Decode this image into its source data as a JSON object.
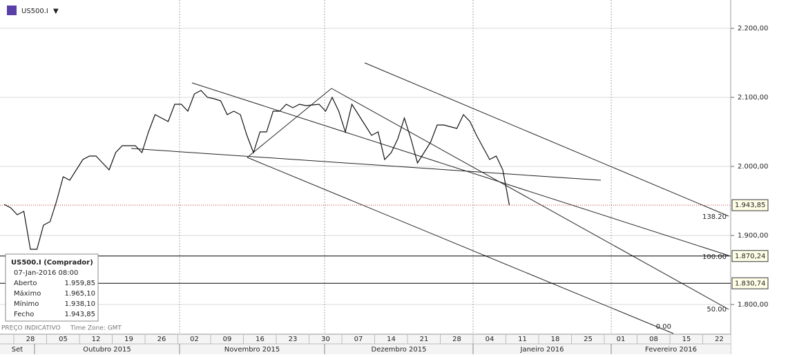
{
  "chart_data": {
    "type": "line",
    "symbol": "US500.I",
    "x": [
      "2015-09-22",
      "2015-09-23",
      "2015-09-24",
      "2015-09-25",
      "2015-09-28",
      "2015-09-29",
      "2015-09-30",
      "2015-10-01",
      "2015-10-02",
      "2015-10-05",
      "2015-10-06",
      "2015-10-07",
      "2015-10-08",
      "2015-10-09",
      "2015-10-12",
      "2015-10-13",
      "2015-10-14",
      "2015-10-15",
      "2015-10-16",
      "2015-10-19",
      "2015-10-20",
      "2015-10-21",
      "2015-10-22",
      "2015-10-23",
      "2015-10-26",
      "2015-10-27",
      "2015-10-28",
      "2015-10-29",
      "2015-10-30",
      "2015-11-02",
      "2015-11-03",
      "2015-11-04",
      "2015-11-05",
      "2015-11-06",
      "2015-11-09",
      "2015-11-10",
      "2015-11-11",
      "2015-11-12",
      "2015-11-13",
      "2015-11-16",
      "2015-11-17",
      "2015-11-18",
      "2015-11-19",
      "2015-11-20",
      "2015-11-23",
      "2015-11-24",
      "2015-11-25",
      "2015-11-27",
      "2015-11-30",
      "2015-12-01",
      "2015-12-02",
      "2015-12-03",
      "2015-12-04",
      "2015-12-07",
      "2015-12-08",
      "2015-12-09",
      "2015-12-10",
      "2015-12-11",
      "2015-12-14",
      "2015-12-15",
      "2015-12-16",
      "2015-12-17",
      "2015-12-18",
      "2015-12-21",
      "2015-12-22",
      "2015-12-23",
      "2015-12-24",
      "2015-12-28",
      "2015-12-29",
      "2015-12-30",
      "2015-12-31",
      "2016-01-04",
      "2016-01-05",
      "2016-01-06",
      "2016-01-07"
    ],
    "series": [
      {
        "name": "US500.I",
        "color": "#111111",
        "values": [
          1945,
          1940,
          1930,
          1935,
          1880,
          1880,
          1915,
          1920,
          1950,
          1985,
          1980,
          1995,
          2010,
          2015,
          2015,
          2005,
          1995,
          2020,
          2030,
          2030,
          2030,
          2020,
          2050,
          2075,
          2070,
          2065,
          2090,
          2090,
          2080,
          2105,
          2110,
          2100,
          2098,
          2095,
          2075,
          2080,
          2075,
          2045,
          2020,
          2050,
          2050,
          2080,
          2080,
          2090,
          2085,
          2090,
          2088,
          2090,
          2080,
          2100,
          2080,
          2050,
          2090,
          2075,
          2060,
          2045,
          2050,
          2010,
          2020,
          2040,
          2070,
          2040,
          2005,
          2020,
          2035,
          2060,
          2060,
          2055,
          2075,
          2065,
          2045,
          2010,
          2015,
          1995,
          1944
        ]
      }
    ],
    "ylim": [
      1757,
      2241
    ],
    "yticks": [
      {
        "value": 1800,
        "label": "1.800,00"
      },
      {
        "value": 1900,
        "label": "1.900,00"
      },
      {
        "value": 2000,
        "label": "2.000,00"
      },
      {
        "value": 2100,
        "label": "2.100,00"
      },
      {
        "value": 2200,
        "label": "2.200,00"
      }
    ],
    "xticks": [
      {
        "value": "2015-09-28",
        "label": "28"
      },
      {
        "value": "2015-10-05",
        "label": "05"
      },
      {
        "value": "2015-10-12",
        "label": "12"
      },
      {
        "value": "2015-10-19",
        "label": "19"
      },
      {
        "value": "2015-10-26",
        "label": "26"
      },
      {
        "value": "2015-11-02",
        "label": "02"
      },
      {
        "value": "2015-11-09",
        "label": "09"
      },
      {
        "value": "2015-11-16",
        "label": "16"
      },
      {
        "value": "2015-11-23",
        "label": "23"
      },
      {
        "value": "2015-11-30",
        "label": "30"
      },
      {
        "value": "2015-12-07",
        "label": "07"
      },
      {
        "value": "2015-12-14",
        "label": "14"
      },
      {
        "value": "2015-12-21",
        "label": "21"
      },
      {
        "value": "2015-12-28",
        "label": "28"
      },
      {
        "value": "2016-01-04",
        "label": "04"
      },
      {
        "value": "2016-01-11",
        "label": "11"
      },
      {
        "value": "2016-01-18",
        "label": "18"
      },
      {
        "value": "2016-01-25",
        "label": "25"
      },
      {
        "value": "2016-02-01",
        "label": "01"
      },
      {
        "value": "2016-02-08",
        "label": "08"
      },
      {
        "value": "2016-02-15",
        "label": "15"
      },
      {
        "value": "2016-02-22",
        "label": "22"
      }
    ],
    "months": [
      "Set",
      "Outubro 2015",
      "Novembro 2015",
      "Dezembro 2015",
      "Janeiro 2016",
      "Fevereiro 2016"
    ],
    "price_lines": [
      {
        "value": 1943.85,
        "label": "1.943,85",
        "color": "#c0392b",
        "dotted": true
      },
      {
        "value": 1870.24,
        "label": "1.870,24",
        "color": "#000000",
        "dotted": false
      },
      {
        "value": 1830.74,
        "label": "1.830,74",
        "color": "#000000",
        "dotted": false
      }
    ],
    "fib_labels": [
      "138.20",
      "100.00",
      "50.00",
      "0.00"
    ],
    "info": {
      "title": "US500.I (Comprador)",
      "time": "07-Jan-2016 08:00",
      "rows": [
        [
          "Aberto",
          "1.959,85"
        ],
        [
          "Máximo",
          "1.965,10"
        ],
        [
          "Mínimo",
          "1.938,10"
        ],
        [
          "Fecho",
          "1.943,85"
        ]
      ]
    },
    "footer": [
      "PREÇO INDICATIVO",
      "Time Zone: GMT"
    ]
  }
}
